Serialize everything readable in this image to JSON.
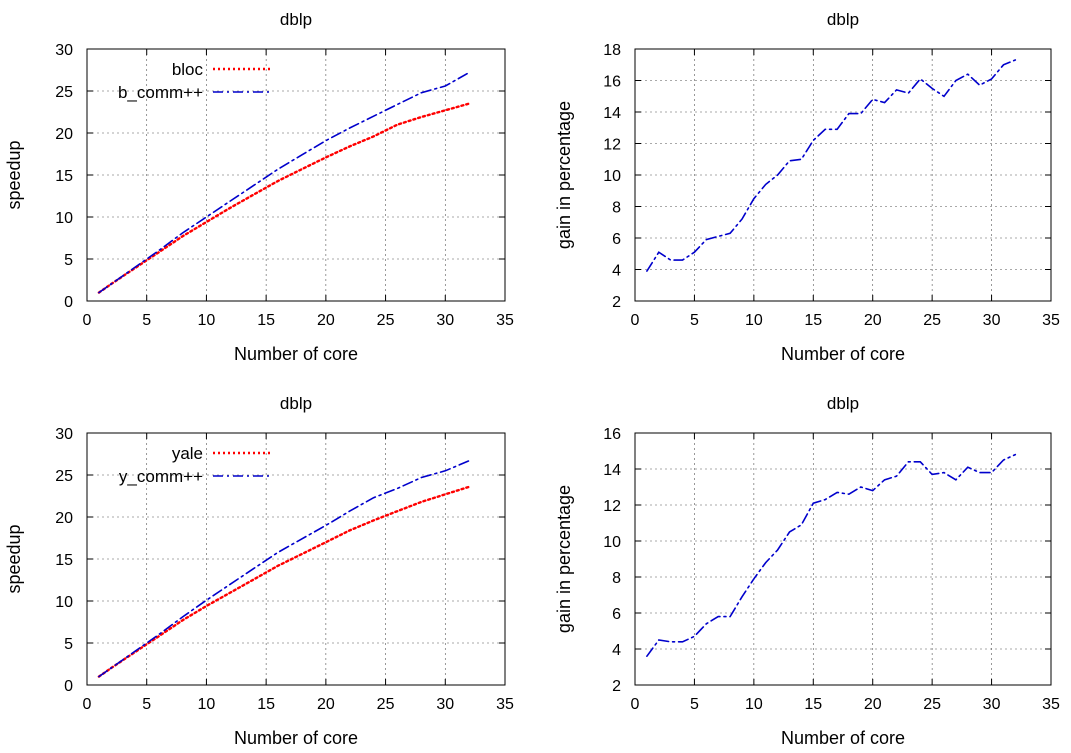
{
  "chart_data": [
    {
      "type": "line",
      "title": "dblp",
      "xlabel": "Number of core",
      "ylabel": "speedup",
      "xlim": [
        0,
        35
      ],
      "ylim": [
        0,
        30
      ],
      "xticks": [
        0,
        5,
        10,
        15,
        20,
        25,
        30,
        35
      ],
      "yticks": [
        0,
        5,
        10,
        15,
        20,
        25,
        30
      ],
      "grid": true,
      "legend_position": "top-left",
      "series": [
        {
          "name": "bloc",
          "color": "#ff0000",
          "style": "dotted",
          "x": [
            1,
            2,
            4,
            6,
            8,
            10,
            12,
            14,
            16,
            18,
            20,
            22,
            24,
            26,
            28,
            30,
            32
          ],
          "y": [
            1,
            2,
            3.9,
            5.8,
            7.7,
            9.4,
            11.1,
            12.7,
            14.3,
            15.7,
            17.1,
            18.4,
            19.6,
            21.0,
            21.9,
            22.7,
            23.5
          ]
        },
        {
          "name": "b_comm++",
          "color": "#0000cc",
          "style": "dashdot",
          "x": [
            1,
            2,
            4,
            6,
            8,
            10,
            12,
            14,
            16,
            18,
            20,
            22,
            24,
            26,
            28,
            30,
            32
          ],
          "y": [
            1,
            2,
            4.0,
            6.0,
            8.1,
            10.0,
            11.9,
            13.8,
            15.7,
            17.4,
            19.1,
            20.6,
            22.0,
            23.4,
            24.8,
            25.6,
            27.2
          ]
        }
      ]
    },
    {
      "type": "line",
      "title": "dblp",
      "xlabel": "Number of core",
      "ylabel": "gain in percentage",
      "xlim": [
        0,
        35
      ],
      "ylim": [
        2,
        18
      ],
      "xticks": [
        0,
        5,
        10,
        15,
        20,
        25,
        30,
        35
      ],
      "yticks": [
        2,
        4,
        6,
        8,
        10,
        12,
        14,
        16,
        18
      ],
      "grid": true,
      "series": [
        {
          "color": "#0000cc",
          "style": "dashdot",
          "x": [
            1,
            2,
            3,
            4,
            5,
            6,
            7,
            8,
            9,
            10,
            11,
            12,
            13,
            14,
            15,
            16,
            17,
            18,
            19,
            20,
            21,
            22,
            23,
            24,
            25,
            26,
            27,
            28,
            29,
            30,
            31,
            32
          ],
          "y": [
            3.9,
            5.1,
            4.6,
            4.6,
            5.1,
            5.9,
            6.1,
            6.3,
            7.2,
            8.5,
            9.4,
            10.0,
            10.9,
            11.0,
            12.2,
            12.9,
            12.9,
            13.9,
            13.9,
            14.8,
            14.6,
            15.4,
            15.2,
            16.1,
            15.5,
            15.0,
            16.0,
            16.4,
            15.7,
            16.1,
            17.0,
            17.3
          ]
        }
      ]
    },
    {
      "type": "line",
      "title": "dblp",
      "xlabel": "Number of core",
      "ylabel": "speedup",
      "xlim": [
        0,
        35
      ],
      "ylim": [
        0,
        30
      ],
      "xticks": [
        0,
        5,
        10,
        15,
        20,
        25,
        30,
        35
      ],
      "yticks": [
        0,
        5,
        10,
        15,
        20,
        25,
        30
      ],
      "grid": true,
      "legend_position": "top-left",
      "series": [
        {
          "name": "yale",
          "color": "#ff0000",
          "style": "dotted",
          "x": [
            1,
            2,
            4,
            6,
            8,
            10,
            12,
            14,
            16,
            18,
            20,
            22,
            24,
            26,
            28,
            30,
            32
          ],
          "y": [
            1,
            2,
            3.9,
            5.8,
            7.7,
            9.4,
            11.0,
            12.6,
            14.2,
            15.6,
            17.0,
            18.4,
            19.6,
            20.7,
            21.8,
            22.7,
            23.6
          ]
        },
        {
          "name": "y_comm++",
          "color": "#0000cc",
          "style": "dashdot",
          "x": [
            1,
            2,
            4,
            6,
            8,
            10,
            12,
            14,
            16,
            18,
            20,
            22,
            24,
            26,
            28,
            30,
            32
          ],
          "y": [
            1,
            2,
            4.0,
            6.0,
            8.1,
            10.1,
            12.0,
            13.9,
            15.8,
            17.4,
            19.0,
            20.7,
            22.3,
            23.4,
            24.7,
            25.5,
            26.7
          ]
        }
      ]
    },
    {
      "type": "line",
      "title": "dblp",
      "xlabel": "Number of core",
      "ylabel": "gain in percentage",
      "xlim": [
        0,
        35
      ],
      "ylim": [
        2,
        16
      ],
      "xticks": [
        0,
        5,
        10,
        15,
        20,
        25,
        30,
        35
      ],
      "yticks": [
        2,
        4,
        6,
        8,
        10,
        12,
        14,
        16
      ],
      "grid": true,
      "series": [
        {
          "color": "#0000cc",
          "style": "dashdot",
          "x": [
            1,
            2,
            3,
            4,
            5,
            6,
            7,
            8,
            9,
            10,
            11,
            12,
            13,
            14,
            15,
            16,
            17,
            18,
            19,
            20,
            21,
            22,
            23,
            24,
            25,
            26,
            27,
            28,
            29,
            30,
            31,
            32
          ],
          "y": [
            3.6,
            4.5,
            4.4,
            4.4,
            4.7,
            5.4,
            5.8,
            5.8,
            6.9,
            7.9,
            8.8,
            9.5,
            10.5,
            10.9,
            12.1,
            12.3,
            12.7,
            12.6,
            13.0,
            12.8,
            13.4,
            13.6,
            14.4,
            14.4,
            13.7,
            13.8,
            13.4,
            14.1,
            13.8,
            13.8,
            14.5,
            14.8
          ]
        }
      ]
    }
  ]
}
